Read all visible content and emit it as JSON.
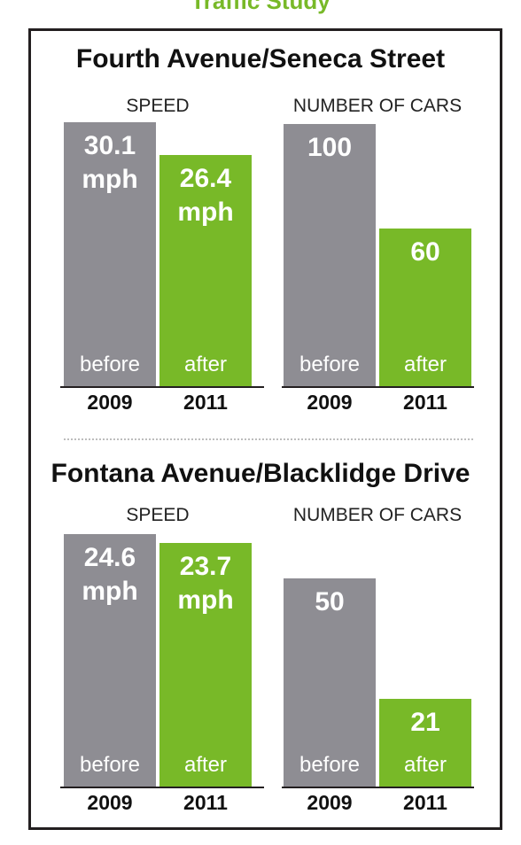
{
  "header": {
    "title": "Traffic Study"
  },
  "chart_data": [
    {
      "type": "bar",
      "section_title": "Fourth Avenue/Seneca Street",
      "title": "SPEED",
      "categories": [
        "before",
        "after"
      ],
      "years": [
        "2009",
        "2011"
      ],
      "values": [
        30.1,
        26.4
      ],
      "value_labels": [
        "30.1\nmph",
        "26.4\nmph"
      ],
      "colors": [
        "#8e8d93",
        "#78b928"
      ]
    },
    {
      "type": "bar",
      "title": "NUMBER OF CARS",
      "categories": [
        "before",
        "after"
      ],
      "years": [
        "2009",
        "2011"
      ],
      "values": [
        100,
        60
      ],
      "value_labels": [
        "100",
        "60"
      ],
      "colors": [
        "#8e8d93",
        "#78b928"
      ]
    },
    {
      "type": "bar",
      "section_title": "Fontana Avenue/Blacklidge Drive",
      "title": "SPEED",
      "categories": [
        "before",
        "after"
      ],
      "years": [
        "2009",
        "2011"
      ],
      "values": [
        24.6,
        23.7
      ],
      "value_labels": [
        "24.6\nmph",
        "23.7\nmph"
      ],
      "colors": [
        "#8e8d93",
        "#78b928"
      ]
    },
    {
      "type": "bar",
      "title": "NUMBER OF CARS",
      "categories": [
        "before",
        "after"
      ],
      "years": [
        "2009",
        "2011"
      ],
      "values": [
        50,
        21
      ],
      "value_labels": [
        "50",
        "21"
      ],
      "colors": [
        "#8e8d93",
        "#78b928"
      ]
    }
  ]
}
